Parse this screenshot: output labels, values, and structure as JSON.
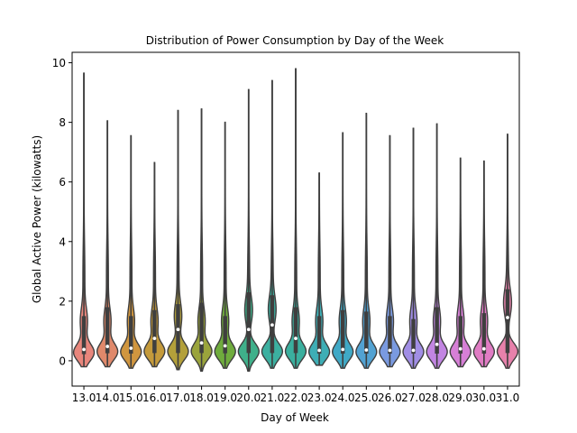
{
  "chart_data": {
    "type": "violin",
    "title": "Distribution of Power Consumption by Day of the Week",
    "xlabel": "Day of Week",
    "ylabel": "Global Active Power (kilowatts)",
    "ylim": [
      -0.85,
      10.35
    ],
    "yticks": [
      0,
      2,
      4,
      6,
      8,
      10
    ],
    "grid": false,
    "categories": [
      "13.0",
      "14.0",
      "15.0",
      "16.0",
      "17.0",
      "18.0",
      "19.0",
      "20.0",
      "21.0",
      "22.0",
      "23.0",
      "24.0",
      "25.0",
      "26.0",
      "27.0",
      "28.0",
      "29.0",
      "30.0",
      "31.0"
    ],
    "colors": [
      "#e8867c",
      "#e0896b",
      "#d0963f",
      "#c49a3b",
      "#b3a03a",
      "#9aa43c",
      "#6fac3d",
      "#3fb08a",
      "#3cb0a0",
      "#3aaf9e",
      "#3eaeb5",
      "#40a9c6",
      "#52a2d2",
      "#7a9ae0",
      "#a18ee5",
      "#c285e2",
      "#d67fd6",
      "#e07cc4",
      "#e781ab"
    ],
    "series": [
      {
        "day": "13.0",
        "min": -0.2,
        "max": 9.65,
        "q1": 0.22,
        "median": 0.38,
        "q3": 1.5
      },
      {
        "day": "14.0",
        "min": -0.2,
        "max": 8.05,
        "q1": 0.25,
        "median": 0.48,
        "q3": 1.8
      },
      {
        "day": "15.0",
        "min": -0.25,
        "max": 7.55,
        "q1": 0.24,
        "median": 0.42,
        "q3": 1.5
      },
      {
        "day": "16.0",
        "min": -0.2,
        "max": 6.65,
        "q1": 0.26,
        "median": 0.75,
        "q3": 1.7
      },
      {
        "day": "17.0",
        "min": -0.3,
        "max": 8.4,
        "q1": 0.26,
        "median": 1.05,
        "q3": 1.9
      },
      {
        "day": "18.0",
        "min": -0.35,
        "max": 8.45,
        "q1": 0.26,
        "median": 0.6,
        "q3": 1.95
      },
      {
        "day": "19.0",
        "min": -0.25,
        "max": 8.0,
        "q1": 0.25,
        "median": 0.5,
        "q3": 1.5
      },
      {
        "day": "20.0",
        "min": -0.35,
        "max": 9.1,
        "q1": 0.26,
        "median": 1.05,
        "q3": 2.3
      },
      {
        "day": "21.0",
        "min": -0.25,
        "max": 9.4,
        "q1": 0.26,
        "median": 1.2,
        "q3": 2.2
      },
      {
        "day": "22.0",
        "min": -0.25,
        "max": 9.8,
        "q1": 0.26,
        "median": 0.75,
        "q3": 1.8
      },
      {
        "day": "23.0",
        "min": -0.15,
        "max": 6.3,
        "q1": 0.24,
        "median": 0.35,
        "q3": 1.5
      },
      {
        "day": "24.0",
        "min": -0.25,
        "max": 7.65,
        "q1": 0.24,
        "median": 0.38,
        "q3": 1.7
      },
      {
        "day": "25.0",
        "min": -0.25,
        "max": 8.3,
        "q1": 0.24,
        "median": 0.36,
        "q3": 1.65
      },
      {
        "day": "26.0",
        "min": -0.2,
        "max": 7.55,
        "q1": 0.24,
        "median": 0.35,
        "q3": 1.5
      },
      {
        "day": "27.0",
        "min": -0.25,
        "max": 7.8,
        "q1": 0.24,
        "median": 0.35,
        "q3": 1.4
      },
      {
        "day": "28.0",
        "min": -0.25,
        "max": 7.95,
        "q1": 0.24,
        "median": 0.55,
        "q3": 1.8
      },
      {
        "day": "29.0",
        "min": -0.2,
        "max": 6.8,
        "q1": 0.24,
        "median": 0.4,
        "q3": 1.5
      },
      {
        "day": "30.0",
        "min": -0.2,
        "max": 6.7,
        "q1": 0.24,
        "median": 0.4,
        "q3": 1.6
      },
      {
        "day": "31.0",
        "min": -0.25,
        "max": 7.6,
        "q1": 0.26,
        "median": 1.45,
        "q3": 2.4
      }
    ]
  }
}
